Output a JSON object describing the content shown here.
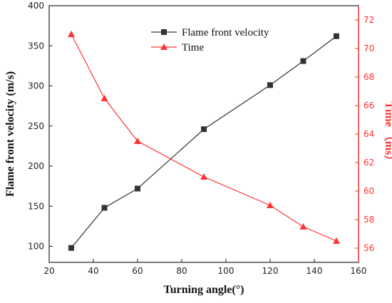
{
  "chart_data": {
    "type": "line",
    "x": [
      30,
      45,
      60,
      90,
      120,
      135,
      150
    ],
    "xlabel": "Turning angle(°)",
    "xlim": [
      20,
      160
    ],
    "xticks": [
      20,
      40,
      60,
      80,
      100,
      120,
      140,
      160
    ],
    "series": [
      {
        "name": "Flame front velocity",
        "axis": "left",
        "marker": "square",
        "color": "#333333",
        "values": [
          98,
          148,
          172,
          246,
          301,
          331,
          362
        ]
      },
      {
        "name": "Time",
        "axis": "right",
        "marker": "triangle",
        "color": "#ff3333",
        "values": [
          71.0,
          66.5,
          63.5,
          61.0,
          59.0,
          57.5,
          56.5
        ]
      }
    ],
    "ylabel_left": "Flame front velocity (m/s)",
    "ylim_left": [
      80,
      400
    ],
    "yticks_left": [
      100,
      150,
      200,
      250,
      300,
      350,
      400
    ],
    "ylabel_right": "Time （ms）",
    "ylim_right": [
      55,
      73
    ],
    "yticks_right": [
      56,
      58,
      60,
      62,
      64,
      66,
      68,
      70,
      72
    ],
    "right_axis_color": "#ff3333",
    "grid": false,
    "legend_position": "top-center"
  }
}
